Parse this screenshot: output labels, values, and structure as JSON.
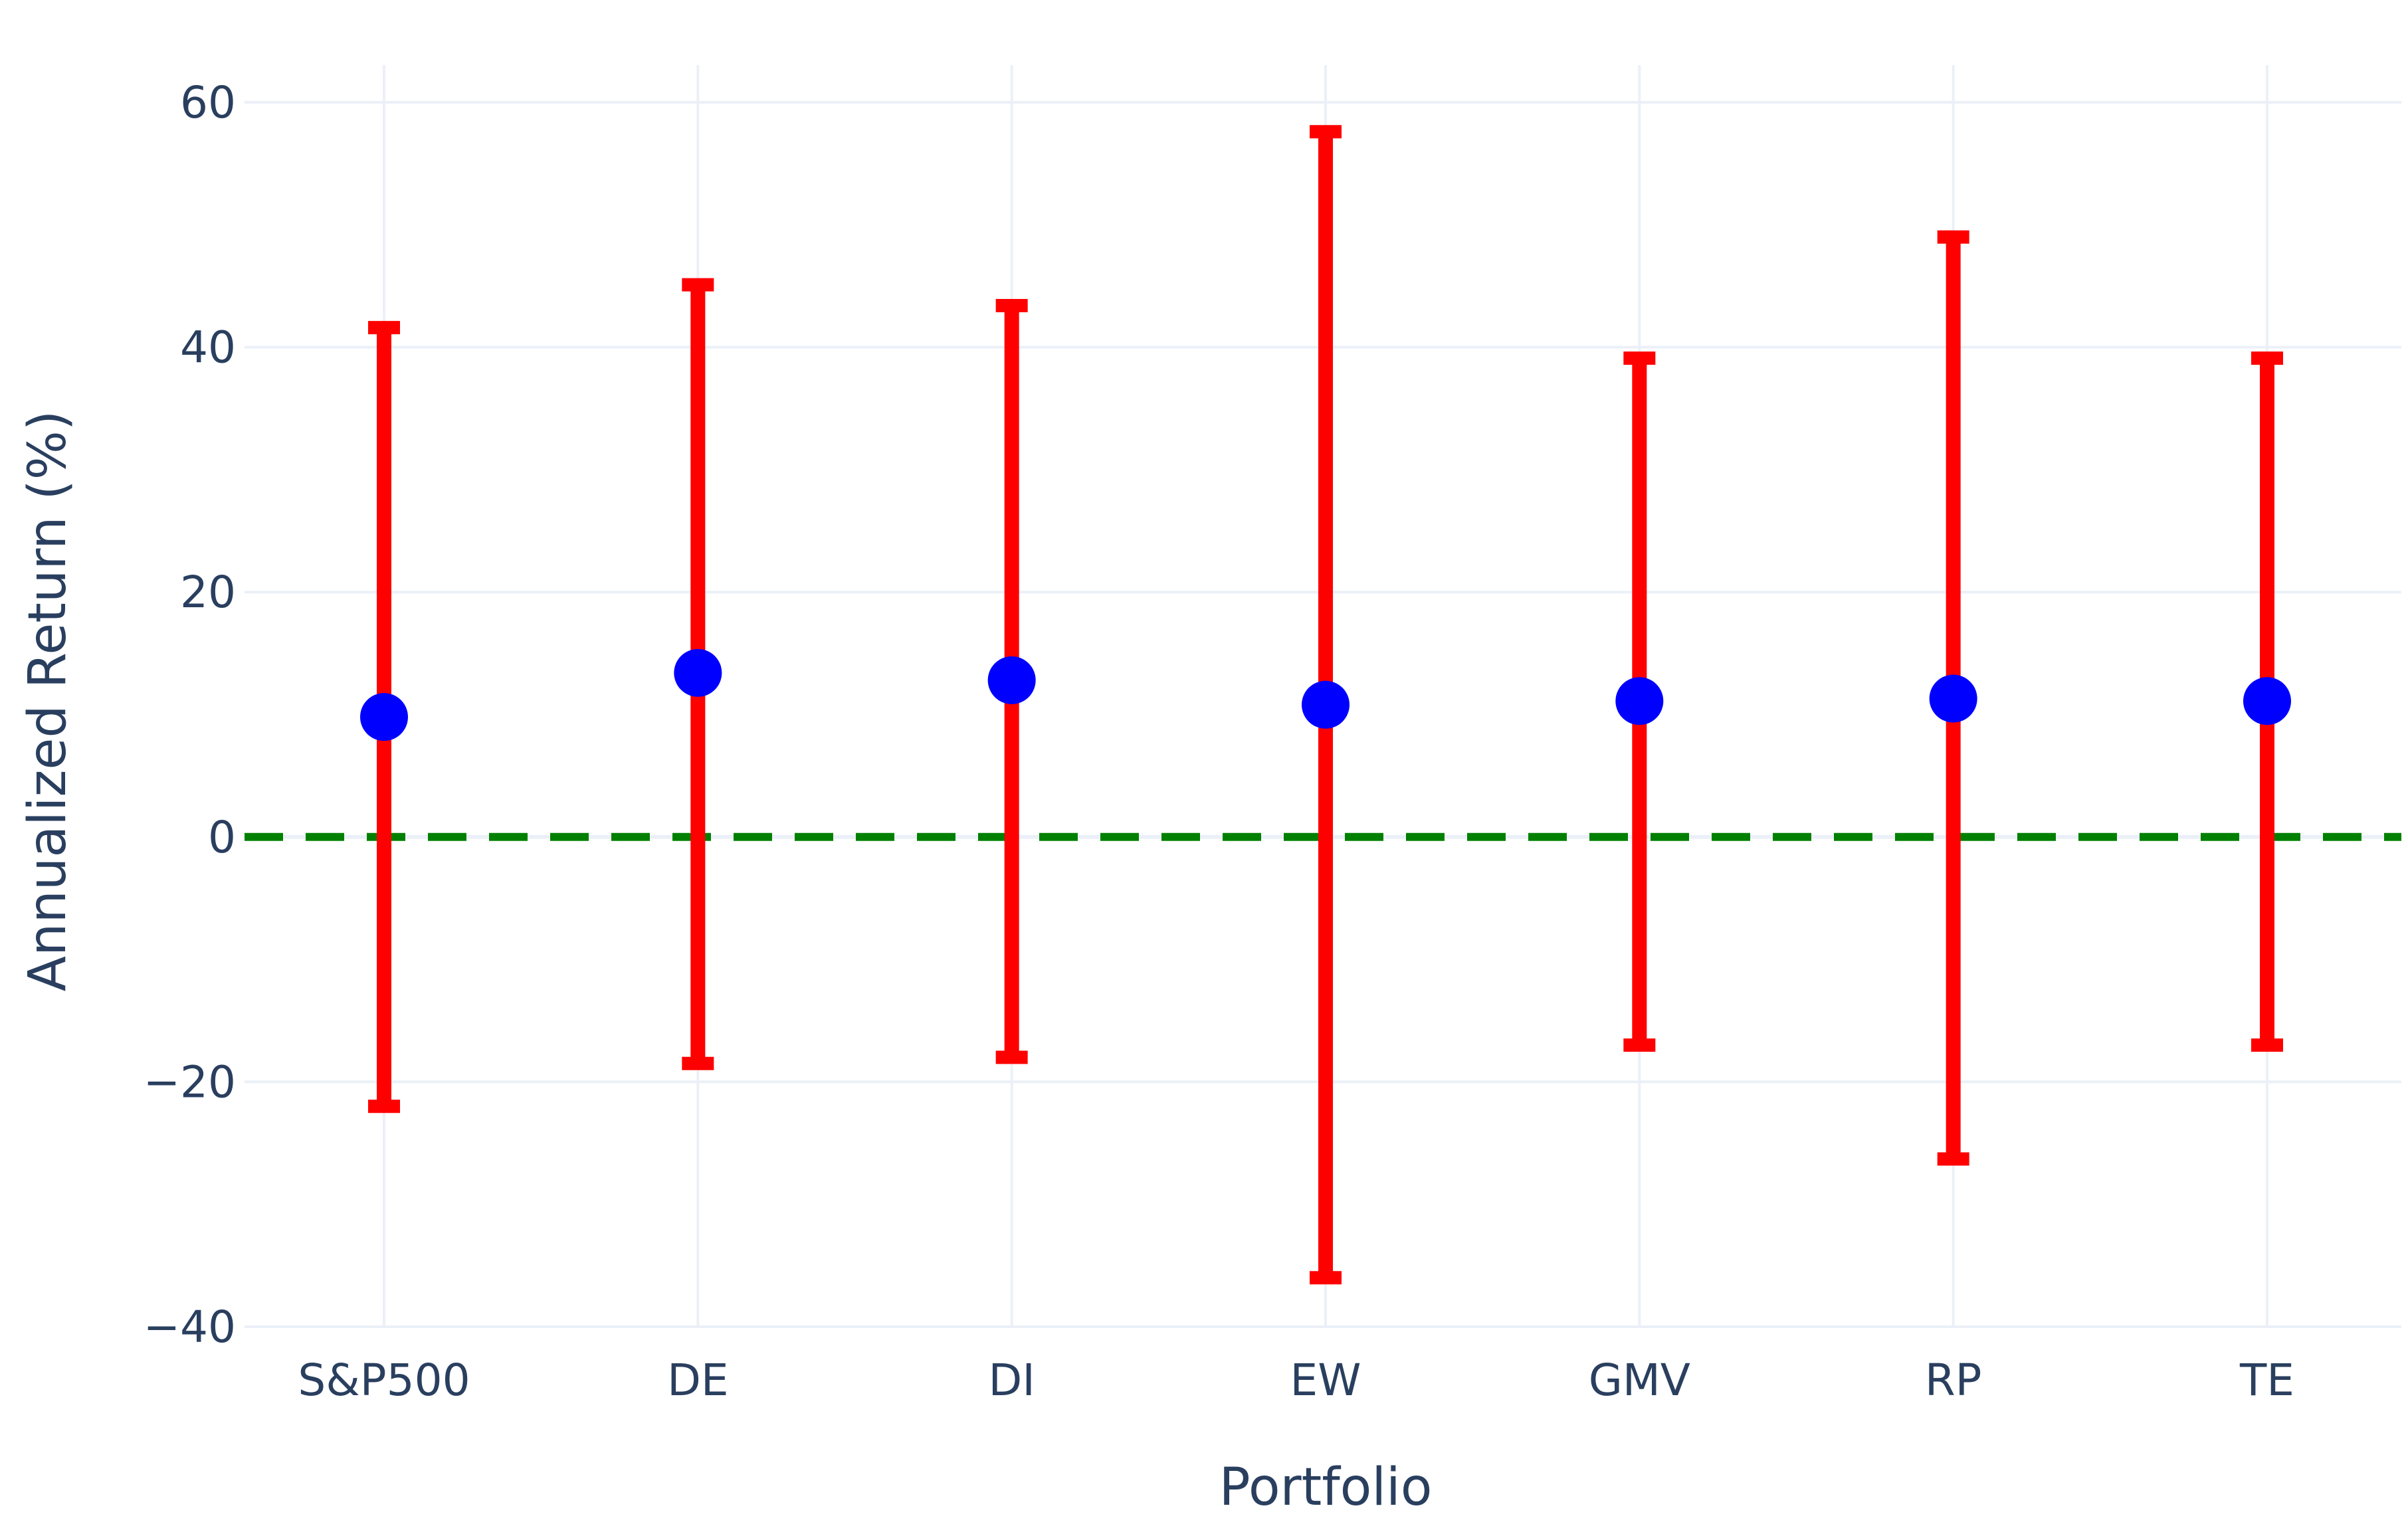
{
  "chart_data": {
    "type": "scatter",
    "title": "",
    "xlabel": "Portfolio",
    "ylabel": "Annualized Return (%)",
    "categories": [
      "S&P500",
      "DE",
      "DI",
      "EW",
      "GMV",
      "RP",
      "TE"
    ],
    "series": [
      {
        "values": [
          9.8,
          13.4,
          12.8,
          10.8,
          11.1,
          11.3,
          11.1
        ],
        "error_low": [
          -22.0,
          -18.5,
          -18.0,
          -36.0,
          -17.0,
          -26.3,
          -17.0
        ],
        "error_high": [
          41.6,
          45.1,
          43.4,
          57.6,
          39.1,
          49.0,
          39.1
        ]
      }
    ],
    "ylim": [
      -40,
      60
    ],
    "yticks": [
      60,
      40,
      20,
      0,
      -20,
      -40
    ],
    "ytick_labels": [
      "60",
      "40",
      "20",
      "0",
      "−20",
      "−40"
    ],
    "reference_line": {
      "y": 0,
      "style": "dashed"
    },
    "grid": true,
    "legend": "none",
    "colors": {
      "marker": "#0000ff",
      "error_bar": "#ff0000",
      "reference_line": "#008000",
      "grid": "#ebf0f8",
      "text": "#2a3f5f"
    }
  }
}
